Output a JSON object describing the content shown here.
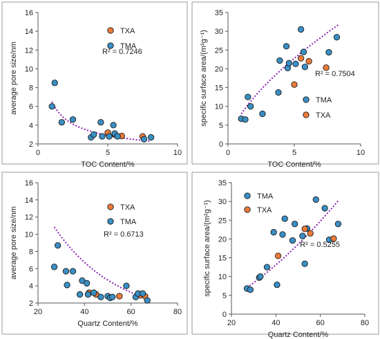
{
  "colors": {
    "tma": "#3a8fc4",
    "txa": "#ec7b3a",
    "trend": "#8a1fb0",
    "marker_edge": "#1a1a1a",
    "frame": "#555555"
  },
  "chart_data": [
    {
      "type": "scatter",
      "xlabel": "TOC Content/%",
      "ylabel": "average pore size/nm",
      "xlim": [
        0,
        10
      ],
      "ylim": [
        2,
        16
      ],
      "xticks": [
        0,
        5,
        10
      ],
      "yticks": [
        2,
        4,
        6,
        8,
        10,
        12,
        14,
        16
      ],
      "grid": false,
      "legend_position": "top-right",
      "annotation": "R² = 0.7246",
      "trendline": {
        "model": "power",
        "a": 6.5,
        "b": -0.5,
        "x_range": [
          1.0,
          8.0
        ]
      },
      "series": [
        {
          "name": "TXA",
          "color": "#ec7b3a",
          "points": [
            [
              5.0,
              3.2
            ],
            [
              5.5,
              3.0
            ],
            [
              6.0,
              2.85
            ],
            [
              7.5,
              2.8
            ]
          ]
        },
        {
          "name": "TMA",
          "color": "#3a8fc4",
          "points": [
            [
              1.0,
              6.0
            ],
            [
              1.2,
              8.5
            ],
            [
              1.7,
              4.3
            ],
            [
              2.5,
              4.6
            ],
            [
              3.8,
              2.7
            ],
            [
              4.0,
              3.0
            ],
            [
              4.5,
              4.3
            ],
            [
              4.6,
              2.8
            ],
            [
              5.1,
              2.8
            ],
            [
              5.4,
              4.0
            ],
            [
              5.5,
              3.1
            ],
            [
              5.7,
              2.8
            ],
            [
              7.6,
              2.5
            ],
            [
              8.1,
              2.7
            ]
          ]
        }
      ]
    },
    {
      "type": "scatter",
      "xlabel": "TOC Content/%",
      "ylabel": "specific surface area/(m²g⁻¹)",
      "xlim": [
        0,
        10
      ],
      "ylim": [
        0,
        35
      ],
      "xticks": [
        0,
        5,
        10
      ],
      "yticks": [
        0,
        5,
        10,
        15,
        20,
        25,
        30,
        35
      ],
      "grid": false,
      "legend_position": "bottom-right",
      "annotation": "R² = 0.7504",
      "trendline": {
        "model": "power",
        "a": 8.0,
        "b": 0.65,
        "x_range": [
          1.0,
          8.3
        ]
      },
      "series": [
        {
          "name": "TMA",
          "color": "#3a8fc4",
          "points": [
            [
              1.0,
              6.7
            ],
            [
              1.3,
              6.5
            ],
            [
              1.5,
              12.5
            ],
            [
              1.7,
              10.0
            ],
            [
              2.6,
              8.0
            ],
            [
              3.8,
              13.7
            ],
            [
              3.9,
              22.2
            ],
            [
              4.4,
              26.0
            ],
            [
              4.5,
              20.2
            ],
            [
              4.6,
              21.5
            ],
            [
              5.1,
              21.3
            ],
            [
              5.5,
              30.5
            ],
            [
              5.7,
              24.5
            ],
            [
              5.8,
              20.5
            ],
            [
              7.6,
              24.4
            ],
            [
              8.2,
              28.4
            ]
          ]
        },
        {
          "name": "TXA",
          "color": "#ec7b3a",
          "points": [
            [
              5.0,
              15.8
            ],
            [
              5.5,
              22.8
            ],
            [
              6.1,
              22.0
            ],
            [
              7.4,
              20.3
            ]
          ]
        }
      ]
    },
    {
      "type": "scatter",
      "xlabel": "Quartz Content/%",
      "ylabel": "average pore size/nm",
      "xlim": [
        20,
        80
      ],
      "ylim": [
        2,
        16
      ],
      "xticks": [
        20,
        40,
        60,
        80
      ],
      "yticks": [
        2,
        4,
        6,
        8,
        10,
        12,
        14,
        16
      ],
      "grid": false,
      "legend_position": "top-right",
      "annotation": "R² = 0.6713",
      "trendline": {
        "model": "exponential",
        "a": 29.1,
        "b": -0.0366,
        "x_range": [
          27,
          67
        ]
      },
      "series": [
        {
          "name": "TXA",
          "color": "#ec7b3a",
          "points": [
            [
              42,
              3.2
            ],
            [
              45,
              3.0
            ],
            [
              55,
              2.8
            ],
            [
              64,
              2.9
            ],
            [
              66,
              2.8
            ]
          ]
        },
        {
          "name": "TMA",
          "color": "#3a8fc4",
          "points": [
            [
              27,
              6.2
            ],
            [
              28.5,
              8.7
            ],
            [
              32,
              5.7
            ],
            [
              32.5,
              4.1
            ],
            [
              35,
              5.7
            ],
            [
              38,
              3.0
            ],
            [
              39,
              4.6
            ],
            [
              41,
              4.3
            ],
            [
              41.5,
              3.0
            ],
            [
              44,
              3.2
            ],
            [
              47,
              2.7
            ],
            [
              50,
              2.8
            ],
            [
              51,
              2.6
            ],
            [
              52,
              2.7
            ],
            [
              58,
              4.0
            ],
            [
              62,
              2.7
            ],
            [
              63,
              3.1
            ],
            [
              65,
              3.1
            ],
            [
              67,
              2.3
            ]
          ]
        }
      ]
    },
    {
      "type": "scatter",
      "xlabel": "Quartz Content/%",
      "ylabel": "specific surface area/(m²g⁻¹)",
      "xlim": [
        20,
        80
      ],
      "ylim": [
        0,
        35
      ],
      "xticks": [
        20,
        40,
        60,
        80
      ],
      "yticks": [
        0,
        5,
        10,
        15,
        20,
        25,
        30,
        35
      ],
      "grid": false,
      "legend_position": "top-left",
      "annotation": "R² = 0.5255",
      "trendline": {
        "model": "power",
        "a": 0.04,
        "b": 1.57,
        "x_range": [
          27,
          68
        ]
      },
      "series": [
        {
          "name": "TMA",
          "color": "#3a8fc4",
          "points": [
            [
              27,
              6.8
            ],
            [
              28.5,
              6.5
            ],
            [
              32.5,
              9.7
            ],
            [
              33,
              10.0
            ],
            [
              36,
              12.5
            ],
            [
              39,
              21.8
            ],
            [
              40.5,
              7.8
            ],
            [
              43,
              21.2
            ],
            [
              44,
              25.4
            ],
            [
              47.5,
              19.6
            ],
            [
              48.5,
              24.0
            ],
            [
              52,
              20.8
            ],
            [
              53,
              13.4
            ],
            [
              54,
              22.8
            ],
            [
              58,
              30.5
            ],
            [
              62,
              28.2
            ],
            [
              64,
              19.8
            ],
            [
              68,
              24.0
            ]
          ]
        },
        {
          "name": "TXA",
          "color": "#ec7b3a",
          "points": [
            [
              41,
              15.5
            ],
            [
              53,
              22.7
            ],
            [
              55.5,
              21.5
            ],
            [
              66,
              20.1
            ]
          ]
        }
      ]
    }
  ]
}
